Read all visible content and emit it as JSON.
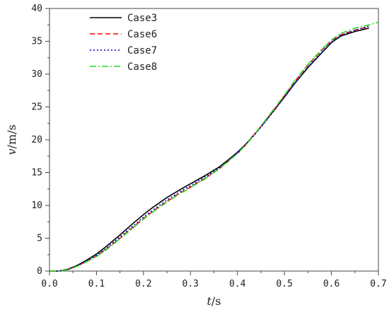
{
  "chart_data": {
    "type": "line",
    "xlabel_var": "t",
    "xlabel_unit": "/s",
    "ylabel_var": "v",
    "ylabel_unit": "/m/s",
    "xlim": [
      0.0,
      0.7
    ],
    "ylim": [
      0,
      40
    ],
    "xticks": [
      "0.0",
      "0.1",
      "0.2",
      "0.3",
      "0.4",
      "0.5",
      "0.6",
      "0.7"
    ],
    "yticks": [
      "0",
      "5",
      "10",
      "15",
      "20",
      "25",
      "30",
      "35",
      "40"
    ],
    "grid": false,
    "legend_position": "top-left",
    "series": [
      {
        "name": "Case3",
        "color": "#000000",
        "dash": "solid",
        "x": [
          0.0,
          0.02,
          0.04,
          0.06,
          0.08,
          0.1,
          0.12,
          0.15,
          0.18,
          0.2,
          0.22,
          0.25,
          0.28,
          0.3,
          0.33,
          0.36,
          0.38,
          0.4,
          0.42,
          0.45,
          0.48,
          0.5,
          0.52,
          0.55,
          0.58,
          0.6,
          0.62,
          0.65,
          0.68
        ],
        "y": [
          0,
          0,
          0.3,
          0.9,
          1.7,
          2.6,
          3.7,
          5.5,
          7.4,
          8.6,
          9.7,
          11.2,
          12.5,
          13.3,
          14.5,
          15.8,
          16.9,
          18.1,
          19.5,
          22.0,
          24.7,
          26.5,
          28.4,
          31.0,
          33.3,
          34.8,
          35.8,
          36.5,
          37.0
        ]
      },
      {
        "name": "Case6",
        "color": "#ff0000",
        "dash": "dashed",
        "x": [
          0.0,
          0.02,
          0.04,
          0.06,
          0.08,
          0.1,
          0.12,
          0.15,
          0.18,
          0.2,
          0.22,
          0.25,
          0.28,
          0.3,
          0.33,
          0.36,
          0.38,
          0.4,
          0.42,
          0.45,
          0.48,
          0.5,
          0.52,
          0.55,
          0.58,
          0.6,
          0.62,
          0.65,
          0.68
        ],
        "y": [
          0,
          0,
          0.25,
          0.8,
          1.5,
          2.3,
          3.3,
          5.0,
          6.8,
          8.0,
          9.1,
          10.6,
          12.0,
          12.8,
          14.1,
          15.5,
          16.7,
          17.9,
          19.4,
          22.0,
          24.8,
          26.7,
          28.7,
          31.4,
          33.7,
          35.1,
          36.0,
          36.7,
          37.2
        ]
      },
      {
        "name": "Case7",
        "color": "#0000cc",
        "dash": "dotted",
        "x": [
          0.0,
          0.02,
          0.04,
          0.06,
          0.08,
          0.1,
          0.12,
          0.15,
          0.18,
          0.2,
          0.22,
          0.25,
          0.28,
          0.3,
          0.33,
          0.36,
          0.38,
          0.4,
          0.42,
          0.45,
          0.48,
          0.5,
          0.52,
          0.55,
          0.58,
          0.6,
          0.62,
          0.65,
          0.68
        ],
        "y": [
          0,
          0,
          0.25,
          0.85,
          1.6,
          2.4,
          3.4,
          5.2,
          7.0,
          8.2,
          9.3,
          10.8,
          12.2,
          13.0,
          14.3,
          15.6,
          16.8,
          18.0,
          19.4,
          21.9,
          24.6,
          26.5,
          28.4,
          31.1,
          33.4,
          34.9,
          35.9,
          36.7,
          37.3
        ]
      },
      {
        "name": "Case8",
        "color": "#22dd22",
        "dash": "dashdot",
        "x": [
          0.0,
          0.02,
          0.04,
          0.06,
          0.08,
          0.1,
          0.12,
          0.15,
          0.18,
          0.2,
          0.22,
          0.25,
          0.28,
          0.3,
          0.33,
          0.36,
          0.38,
          0.4,
          0.42,
          0.45,
          0.48,
          0.5,
          0.52,
          0.55,
          0.58,
          0.6,
          0.62,
          0.65,
          0.68,
          0.7
        ],
        "y": [
          0,
          0,
          0.2,
          0.75,
          1.45,
          2.2,
          3.2,
          4.9,
          6.7,
          7.9,
          9.0,
          10.5,
          11.9,
          12.7,
          14.0,
          15.5,
          16.7,
          17.9,
          19.4,
          22.1,
          24.9,
          26.8,
          28.8,
          31.5,
          33.8,
          35.2,
          36.2,
          37.0,
          37.5,
          37.9
        ]
      }
    ]
  }
}
